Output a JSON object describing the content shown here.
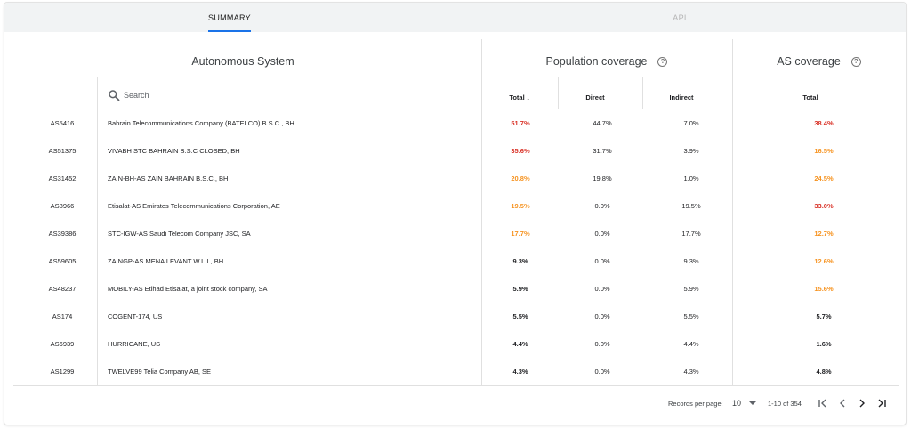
{
  "tabs": [
    {
      "label": "SUMMARY",
      "active": true
    },
    {
      "label": "API",
      "active": false
    }
  ],
  "headers": {
    "autonomous_system": "Autonomous System",
    "population_coverage": "Population coverage",
    "as_coverage": "AS coverage",
    "help_glyph": "?"
  },
  "search": {
    "placeholder": "Search",
    "value": ""
  },
  "columns": {
    "total": "Total",
    "sort_glyph": "↓",
    "direct": "Direct",
    "indirect": "Indirect",
    "as_total": "Total"
  },
  "colors": {
    "red": "#d93025",
    "orange": "#f6921e",
    "black": "#202124",
    "accent": "#1a73e8"
  },
  "rows": [
    {
      "asn": "AS5416",
      "name": "Bahrain Telecommunications Company (BATELCO) B.S.C., BH",
      "total": "51.7%",
      "total_color": "red",
      "direct": "44.7%",
      "indirect": "7.0%",
      "as_total": "38.4%",
      "as_color": "red"
    },
    {
      "asn": "AS51375",
      "name": "VIVABH STC BAHRAIN B.S.C CLOSED, BH",
      "total": "35.6%",
      "total_color": "red",
      "direct": "31.7%",
      "indirect": "3.9%",
      "as_total": "16.5%",
      "as_color": "orange"
    },
    {
      "asn": "AS31452",
      "name": "ZAIN-BH-AS ZAIN BAHRAIN B.S.C., BH",
      "total": "20.8%",
      "total_color": "orange",
      "direct": "19.8%",
      "indirect": "1.0%",
      "as_total": "24.5%",
      "as_color": "orange"
    },
    {
      "asn": "AS8966",
      "name": "Etisalat-AS Emirates Telecommunications Corporation, AE",
      "total": "19.5%",
      "total_color": "orange",
      "direct": "0.0%",
      "indirect": "19.5%",
      "as_total": "33.0%",
      "as_color": "red"
    },
    {
      "asn": "AS39386",
      "name": "STC-IGW-AS Saudi Telecom Company JSC, SA",
      "total": "17.7%",
      "total_color": "orange",
      "direct": "0.0%",
      "indirect": "17.7%",
      "as_total": "12.7%",
      "as_color": "orange"
    },
    {
      "asn": "AS59605",
      "name": "ZAINGP-AS MENA LEVANT W.L.L, BH",
      "total": "9.3%",
      "total_color": "black",
      "direct": "0.0%",
      "indirect": "9.3%",
      "as_total": "12.6%",
      "as_color": "orange"
    },
    {
      "asn": "AS48237",
      "name": "MOBILY-AS Etihad Etisalat, a joint stock company, SA",
      "total": "5.9%",
      "total_color": "black",
      "direct": "0.0%",
      "indirect": "5.9%",
      "as_total": "15.6%",
      "as_color": "orange"
    },
    {
      "asn": "AS174",
      "name": "COGENT-174, US",
      "total": "5.5%",
      "total_color": "black",
      "direct": "0.0%",
      "indirect": "5.5%",
      "as_total": "5.7%",
      "as_color": "black"
    },
    {
      "asn": "AS6939",
      "name": "HURRICANE, US",
      "total": "4.4%",
      "total_color": "black",
      "direct": "0.0%",
      "indirect": "4.4%",
      "as_total": "1.6%",
      "as_color": "black"
    },
    {
      "asn": "AS1299",
      "name": "TWELVE99 Telia Company AB, SE",
      "total": "4.3%",
      "total_color": "black",
      "direct": "0.0%",
      "indirect": "4.3%",
      "as_total": "4.8%",
      "as_color": "black"
    }
  ],
  "pagination": {
    "records_label": "Records per page:",
    "per_page": "10",
    "range": "1-10 of 354",
    "first_glyph": "|‹",
    "prev_glyph": "‹",
    "next_glyph": "›",
    "last_glyph": "›|"
  },
  "icons": {
    "search": "search-icon",
    "help": "help-circle-icon",
    "dropdown": "caret-down-icon"
  }
}
